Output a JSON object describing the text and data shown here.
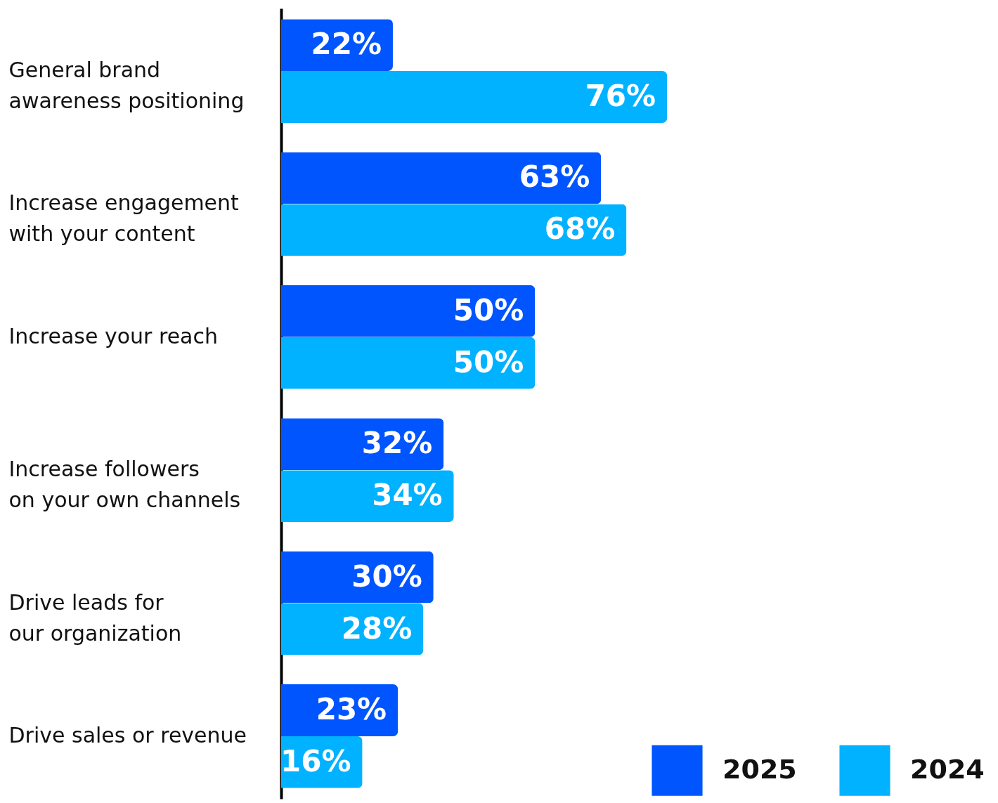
{
  "chart_data": {
    "type": "bar",
    "orientation": "horizontal",
    "categories": [
      "General brand\nawareness positioning",
      "Increase engagement\nwith your content",
      "Increase your reach",
      "Increase followers\non your own channels",
      "Drive leads for\nour organization",
      "Drive sales or revenue"
    ],
    "series": [
      {
        "name": "2025",
        "color": "#0055ff",
        "values": [
          22,
          63,
          50,
          32,
          30,
          23
        ],
        "value_labels": [
          "22%",
          "63%",
          "50%",
          "32%",
          "30%",
          "23%"
        ]
      },
      {
        "name": "2024",
        "color": "#00b2ff",
        "values": [
          76,
          68,
          50,
          34,
          28,
          16
        ],
        "value_labels": [
          "76%",
          "68%",
          "50%",
          "34%",
          "28%",
          "16%"
        ]
      }
    ],
    "legend": "bottom right",
    "grid": false
  }
}
